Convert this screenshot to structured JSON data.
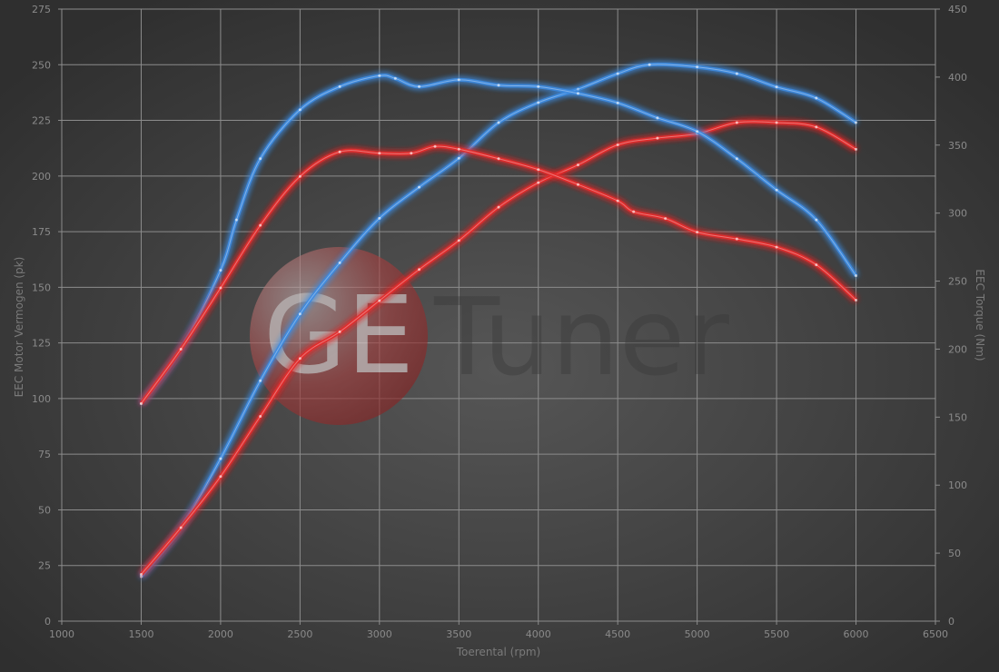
{
  "watermark": "GE Tuner",
  "chart_data": {
    "type": "line",
    "xlabel": "Toerental (rpm)",
    "ylabel": "EEC Motor Vermogen (pk)",
    "y2label": "EEC Torque (Nm)",
    "xlim": [
      1000,
      6500
    ],
    "ylim": [
      0,
      275
    ],
    "y2lim": [
      0,
      450
    ],
    "xticks": [
      1000,
      1500,
      2000,
      2500,
      3000,
      3500,
      4000,
      4500,
      5000,
      5500,
      6000,
      6500
    ],
    "yticks": [
      0,
      25,
      50,
      75,
      100,
      125,
      150,
      175,
      200,
      225,
      250,
      275
    ],
    "y2ticks": [
      0,
      50,
      100,
      150,
      200,
      250,
      300,
      350,
      400,
      450
    ],
    "grid": true,
    "legend": "none",
    "colors": {
      "tuned": "#3d8be0",
      "stock": "#e42a2a",
      "background": "#3c3c3c",
      "grid": "#8c8c8c"
    },
    "series": [
      {
        "axis": "left",
        "color": "#3d8be0",
        "x": [
          1500,
          1750,
          2000,
          2250,
          2500,
          2750,
          3000,
          3250,
          3500,
          3750,
          4000,
          4250,
          4500,
          4700,
          5000,
          5250,
          5500,
          5750,
          6000
        ],
        "y": [
          20,
          42,
          73,
          108,
          138,
          161,
          181,
          195,
          208,
          224,
          233,
          239,
          246,
          250,
          249,
          246,
          240,
          235,
          224
        ]
      },
      {
        "axis": "left",
        "color": "#e42a2a",
        "x": [
          1500,
          1750,
          2000,
          2250,
          2500,
          2750,
          3000,
          3250,
          3500,
          3750,
          4000,
          4250,
          4500,
          4750,
          5000,
          5250,
          5500,
          5750,
          6000
        ],
        "y": [
          21,
          42,
          65,
          92,
          118,
          130,
          144,
          158,
          171,
          186,
          197,
          205,
          214,
          217,
          219,
          224,
          224,
          222,
          212
        ]
      },
      {
        "axis": "right",
        "color": "#3d8be0",
        "x": [
          1500,
          1750,
          2000,
          2100,
          2250,
          2500,
          2750,
          3000,
          3100,
          3250,
          3500,
          3750,
          4000,
          4250,
          4500,
          4750,
          5000,
          5250,
          5500,
          5750,
          6000
        ],
        "y": [
          160,
          200,
          258,
          295,
          340,
          376,
          393,
          401,
          399,
          393,
          398,
          394,
          393,
          388,
          381,
          370,
          360,
          340,
          317,
          295,
          254
        ]
      },
      {
        "axis": "right",
        "color": "#e42a2a",
        "x": [
          1500,
          1750,
          2000,
          2250,
          2500,
          2750,
          3000,
          3200,
          3350,
          3500,
          3750,
          4000,
          4250,
          4500,
          4600,
          4800,
          5000,
          5250,
          5500,
          5750,
          6000
        ],
        "y": [
          160,
          200,
          245,
          291,
          327,
          345,
          344,
          344,
          349,
          347,
          340,
          332,
          321,
          309,
          301,
          296,
          286,
          281,
          275,
          262,
          236
        ]
      }
    ]
  }
}
